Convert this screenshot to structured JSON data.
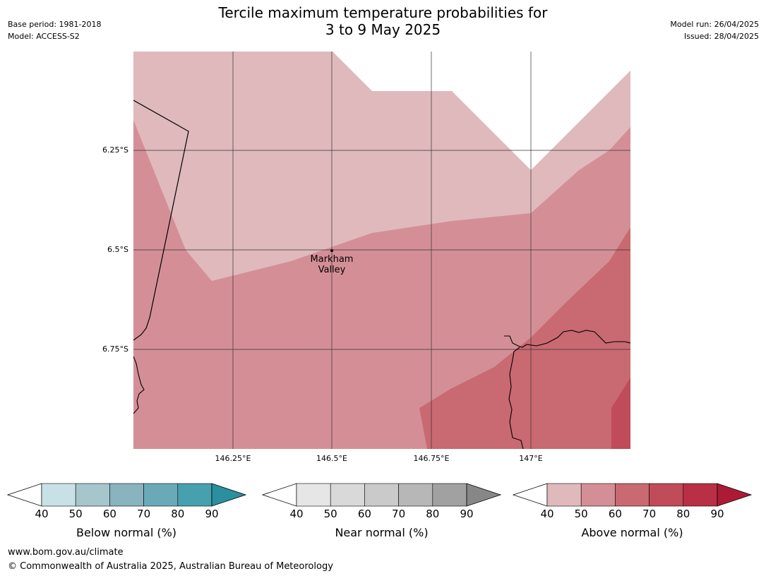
{
  "header": {
    "title_line1": "Tercile maximum temperature probabilities for",
    "title_line2": "3 to 9 May 2025",
    "base_period": "Base period: 1981-2018",
    "model": "Model: ACCESS-S2",
    "model_run": "Model run: 26/04/2025",
    "issued": "Issued: 28/04/2025"
  },
  "map": {
    "lat_labels": [
      "6.25°S",
      "6.5°S",
      "6.75°S"
    ],
    "lon_labels": [
      "146.25°E",
      "146.5°E",
      "146.75°E",
      "147°E"
    ],
    "place": {
      "line1": "Markham",
      "line2": "Valley"
    },
    "fill_colors": {
      "above_40_50": "#e0b9bd",
      "above_50_60": "#d48f96",
      "above_60_70": "#c96971",
      "above_70_80": "#c04b59"
    }
  },
  "legend": {
    "below": {
      "label": "Below normal (%)",
      "ticks": [
        "40",
        "50",
        "60",
        "70",
        "80",
        "90"
      ],
      "colors": [
        "#c8e1e6",
        "#a6c6cc",
        "#88b3bf",
        "#6aaab8",
        "#46a0ad",
        "#2a8f9e"
      ]
    },
    "near": {
      "label": "Near normal (%)",
      "ticks": [
        "40",
        "50",
        "60",
        "70",
        "80",
        "90"
      ],
      "colors": [
        "#e6e6e6",
        "#d9d9d9",
        "#cacaca",
        "#b7b7b7",
        "#a1a1a1",
        "#878787"
      ]
    },
    "above": {
      "label": "Above normal (%)",
      "ticks": [
        "40",
        "50",
        "60",
        "70",
        "80",
        "90"
      ],
      "colors": [
        "#e0b9bd",
        "#d48f96",
        "#c96971",
        "#c04b59",
        "#b92f45",
        "#ad1a35"
      ]
    }
  },
  "footer": {
    "website": "www.bom.gov.au/climate",
    "copyright": "© Commonwealth of Australia 2025, Australian Bureau of Meteorology"
  }
}
